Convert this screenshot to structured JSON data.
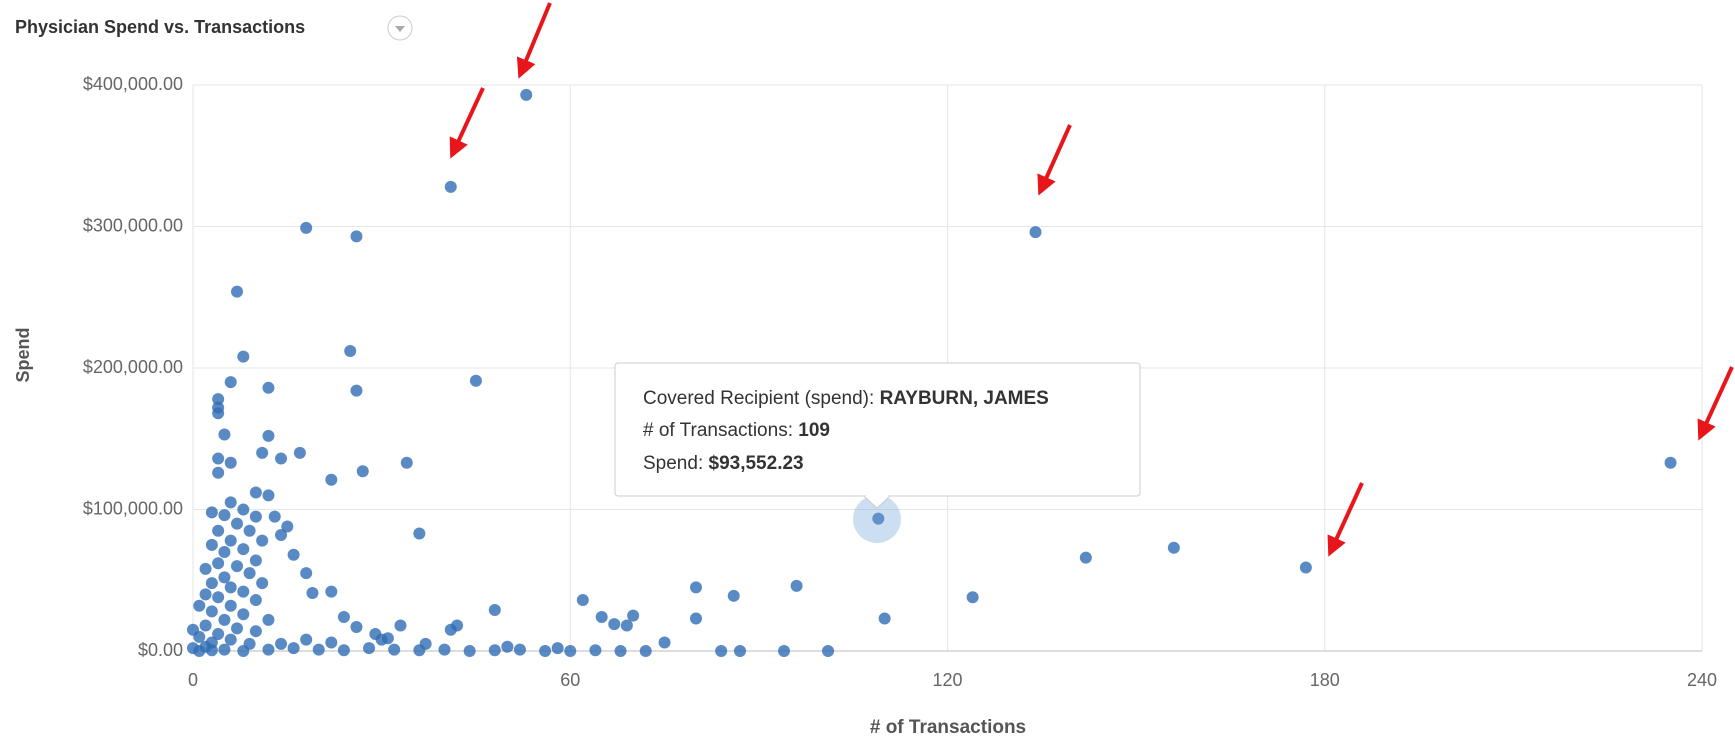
{
  "chart_data": {
    "type": "scatter",
    "title": "Physician Spend vs. Transactions",
    "x_label": "# of Transactions",
    "y_label": "Spend",
    "color": "#2f6db5",
    "grid": true,
    "xlim": [
      0,
      240
    ],
    "xticks": [
      0,
      60,
      120,
      180,
      240
    ],
    "ylim": [
      0,
      400000
    ],
    "yticks": [
      {
        "value": 0,
        "label": "$0.00"
      },
      {
        "value": 100000,
        "label": "$100,000.00"
      },
      {
        "value": 200000,
        "label": "$200,000.00"
      },
      {
        "value": 300000,
        "label": "$300,000.00"
      },
      {
        "value": 400000,
        "label": "$400,000.00"
      }
    ],
    "x": [
      53,
      41,
      134,
      235,
      177,
      156,
      142,
      109,
      110,
      124,
      96,
      86,
      80,
      80,
      62,
      65,
      67,
      69,
      70,
      48,
      42,
      45,
      34,
      36,
      26,
      18,
      25,
      26,
      27,
      22,
      17,
      14,
      12,
      12,
      11,
      7,
      8,
      6,
      4,
      4,
      4,
      5,
      4,
      6,
      4,
      10,
      12,
      10,
      13,
      15,
      14,
      16,
      18,
      19,
      22,
      24,
      26,
      29,
      31,
      33,
      41,
      37,
      6,
      8,
      3,
      5,
      7,
      9,
      4,
      11,
      6,
      3,
      8,
      5,
      10,
      4,
      7,
      2,
      9,
      5,
      3,
      11,
      6,
      8,
      2,
      4,
      10,
      6,
      1,
      3,
      8,
      5,
      12,
      2,
      7,
      10,
      4,
      1,
      6,
      3,
      9,
      14,
      0,
      2,
      0,
      5,
      8,
      12,
      16,
      20,
      24,
      28,
      32,
      36,
      40,
      44,
      48,
      52,
      56,
      60,
      64,
      68,
      72,
      75,
      84,
      87,
      94,
      101,
      1,
      3,
      18,
      22,
      30,
      50,
      58
    ],
    "values": [
      393000,
      328000,
      296000,
      133000,
      59000,
      73000,
      66000,
      93552.23,
      23000,
      38000,
      46000,
      39000,
      45000,
      23000,
      36000,
      24000,
      19000,
      18000,
      25000,
      29000,
      18000,
      191000,
      133000,
      83000,
      293000,
      299000,
      212000,
      184000,
      127000,
      121000,
      140000,
      136000,
      186000,
      152000,
      140000,
      254000,
      208000,
      190000,
      178000,
      172000,
      168000,
      153000,
      136000,
      133000,
      126000,
      112000,
      110000,
      95000,
      95000,
      88000,
      82000,
      68000,
      55000,
      41000,
      42000,
      24000,
      17000,
      12000,
      9000,
      18000,
      15000,
      5000,
      105000,
      100000,
      98000,
      96000,
      90000,
      85000,
      85000,
      78000,
      78000,
      75000,
      72000,
      70000,
      64000,
      62000,
      60000,
      58000,
      55000,
      52000,
      48000,
      48000,
      45000,
      42000,
      40000,
      38000,
      36000,
      32000,
      32000,
      28000,
      26000,
      22000,
      22000,
      18000,
      16000,
      14000,
      12000,
      10000,
      8000,
      6000,
      5000,
      5000,
      15000,
      3000,
      2000,
      1000,
      0,
      1000,
      2000,
      1000,
      500,
      2000,
      1000,
      500,
      1000,
      0,
      500,
      1000,
      0,
      0,
      500,
      0,
      0,
      6000,
      0,
      0,
      0,
      0,
      0,
      500,
      8000,
      6000,
      8000,
      3000,
      2000
    ],
    "tooltip": {
      "recipient_label": "Covered Recipient (spend):",
      "recipient": "RAYBURN, JAMES",
      "transactions_label": "# of Transactions:",
      "transactions": "109",
      "spend_label": "Spend:",
      "spend": "$93,552.23"
    }
  }
}
